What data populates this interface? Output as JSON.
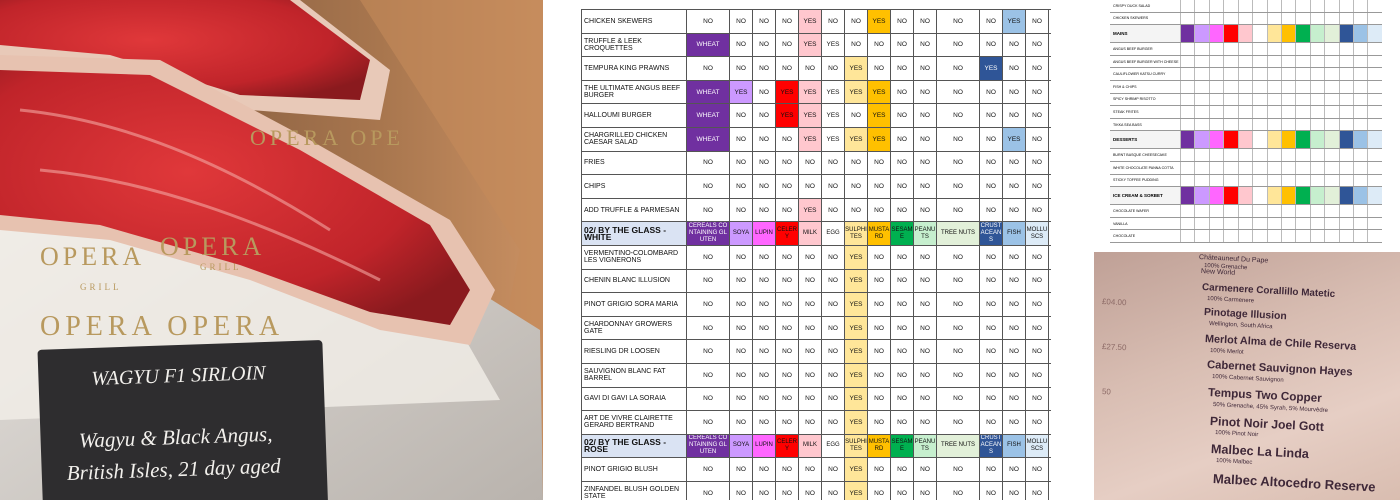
{
  "photo": {
    "sign_title": "WAGYU F1 SIRLOIN",
    "sign_lines": [
      "Wagyu & Black Angus,",
      "British Isles, 21 day aged"
    ],
    "paper_text": [
      "OPERA",
      "OPERA",
      "GRILL",
      "OPERA OPE",
      "GRILL",
      "OPERA OPERA"
    ]
  },
  "allergen_table": {
    "columns": [
      "CEREALS CONTAINING GLUTEN",
      "SOYA",
      "LUPIN",
      "CELERY",
      "MILK",
      "EGG",
      "SULPHITES",
      "MUSTARD",
      "SESAME",
      "PEANUTS",
      "TREE NUTS",
      "CRUSTACEANS",
      "FISH",
      "MOLLUSCS"
    ],
    "colors": [
      "#7030a0",
      "#cc99ff",
      "#ff66ff",
      "#ff0000",
      "#ffc7ce",
      "#ffffff",
      "#ffe699",
      "#ffc000",
      "#00b050",
      "#c6efce",
      "#e2f0d9",
      "#2f5597",
      "#9bc2e6",
      "#ddebf7"
    ],
    "rows": [
      {
        "label": "CHICKEN SKEWERS",
        "cells": [
          "NO",
          "NO",
          "NO",
          "NO",
          "YES",
          "NO",
          "NO",
          "YES",
          "NO",
          "NO",
          "NO",
          "NO",
          "YES",
          "NO"
        ]
      },
      {
        "label": "TRUFFLE & LEEK CROQUETTES",
        "cells": [
          "WHEAT",
          "NO",
          "NO",
          "NO",
          "YES",
          "YES",
          "NO",
          "NO",
          "NO",
          "NO",
          "NO",
          "NO",
          "NO",
          "NO"
        ]
      },
      {
        "label": "TEMPURA KING PRAWNS",
        "cells": [
          "NO",
          "NO",
          "NO",
          "NO",
          "NO",
          "NO",
          "YES",
          "NO",
          "NO",
          "NO",
          "NO",
          "YES",
          "NO",
          "NO"
        ]
      },
      {
        "label": "THE ULTIMATE ANGUS BEEF BURGER",
        "cells": [
          "WHEAT",
          "YES",
          "NO",
          "YES",
          "YES",
          "YES",
          "YES",
          "YES",
          "NO",
          "NO",
          "NO",
          "NO",
          "NO",
          "NO"
        ]
      },
      {
        "label": "HALLOUMI BURGER",
        "cells": [
          "WHEAT",
          "NO",
          "NO",
          "YES",
          "YES",
          "YES",
          "NO",
          "YES",
          "NO",
          "NO",
          "NO",
          "NO",
          "NO",
          "NO"
        ]
      },
      {
        "label": "CHARGRILLED CHICKEN CAESAR SALAD",
        "cells": [
          "WHEAT",
          "NO",
          "NO",
          "NO",
          "YES",
          "YES",
          "YES",
          "YES",
          "NO",
          "NO",
          "NO",
          "NO",
          "YES",
          "NO"
        ]
      },
      {
        "label": "FRIES",
        "cells": [
          "NO",
          "NO",
          "NO",
          "NO",
          "NO",
          "NO",
          "NO",
          "NO",
          "NO",
          "NO",
          "NO",
          "NO",
          "NO",
          "NO"
        ]
      },
      {
        "label": "CHIPS",
        "cells": [
          "NO",
          "NO",
          "NO",
          "NO",
          "NO",
          "NO",
          "NO",
          "NO",
          "NO",
          "NO",
          "NO",
          "NO",
          "NO",
          "NO"
        ]
      },
      {
        "label": "ADD TRUFFLE & PARMESAN",
        "cells": [
          "NO",
          "NO",
          "NO",
          "NO",
          "YES",
          "NO",
          "NO",
          "NO",
          "NO",
          "NO",
          "NO",
          "NO",
          "NO",
          "NO"
        ]
      },
      {
        "section": "02/ BY THE GLASS - WHITE"
      },
      {
        "label": "VERMENTINO-COLOMBARD LES VIGNERONS",
        "cells": [
          "NO",
          "NO",
          "NO",
          "NO",
          "NO",
          "NO",
          "YES",
          "NO",
          "NO",
          "NO",
          "NO",
          "NO",
          "NO",
          "NO"
        ]
      },
      {
        "label": "CHENIN BLANC ILLUSION",
        "cells": [
          "NO",
          "NO",
          "NO",
          "NO",
          "NO",
          "NO",
          "YES",
          "NO",
          "NO",
          "NO",
          "NO",
          "NO",
          "NO",
          "NO"
        ]
      },
      {
        "label": "PINOT GRIGIO SORA MARIA",
        "cells": [
          "NO",
          "NO",
          "NO",
          "NO",
          "NO",
          "NO",
          "YES",
          "NO",
          "NO",
          "NO",
          "NO",
          "NO",
          "NO",
          "NO"
        ]
      },
      {
        "label": "CHARDONNAY GROWERS GATE",
        "cells": [
          "NO",
          "NO",
          "NO",
          "NO",
          "NO",
          "NO",
          "YES",
          "NO",
          "NO",
          "NO",
          "NO",
          "NO",
          "NO",
          "NO"
        ]
      },
      {
        "label": "RIESLING DR LOOSEN",
        "cells": [
          "NO",
          "NO",
          "NO",
          "NO",
          "NO",
          "NO",
          "YES",
          "NO",
          "NO",
          "NO",
          "NO",
          "NO",
          "NO",
          "NO"
        ]
      },
      {
        "label": "SAUVIGNON BLANC FAT BARREL",
        "cells": [
          "NO",
          "NO",
          "NO",
          "NO",
          "NO",
          "NO",
          "YES",
          "NO",
          "NO",
          "NO",
          "NO",
          "NO",
          "NO",
          "NO"
        ]
      },
      {
        "label": "GAVI DI GAVI LA SORAIA",
        "cells": [
          "NO",
          "NO",
          "NO",
          "NO",
          "NO",
          "NO",
          "YES",
          "NO",
          "NO",
          "NO",
          "NO",
          "NO",
          "NO",
          "NO"
        ]
      },
      {
        "label": "ART DE VIVRE CLAIRETTE GERARD BERTRAND",
        "cells": [
          "NO",
          "NO",
          "NO",
          "NO",
          "NO",
          "NO",
          "YES",
          "NO",
          "NO",
          "NO",
          "NO",
          "NO",
          "NO",
          "NO"
        ]
      },
      {
        "section": "02/ BY THE GLASS - ROSE"
      },
      {
        "label": "PINOT GRIGIO BLUSH",
        "cells": [
          "NO",
          "NO",
          "NO",
          "NO",
          "NO",
          "NO",
          "YES",
          "NO",
          "NO",
          "NO",
          "NO",
          "NO",
          "NO",
          "NO"
        ]
      },
      {
        "label": "ZINFANDEL BLUSH GOLDEN STATE",
        "cells": [
          "NO",
          "NO",
          "NO",
          "NO",
          "NO",
          "NO",
          "YES",
          "NO",
          "NO",
          "NO",
          "NO",
          "NO",
          "NO",
          "NO"
        ]
      }
    ]
  },
  "small_table": {
    "rows": [
      {
        "label": "CRISPY DUCK SALAD"
      },
      {
        "label": "CHICKEN SKEWERS"
      },
      {
        "section": "MAINS"
      },
      {
        "label": "ANGUS BEEF BURGER"
      },
      {
        "label": "ANGUS BEEF BURGER WITH CHEESE"
      },
      {
        "label": "CAULIFLOWER KATSU CURRY"
      },
      {
        "label": "FISH & CHIPS"
      },
      {
        "label": "SPICY SHRIMP RISOTTO"
      },
      {
        "label": "STEAK FRITES"
      },
      {
        "label": "TIKKA SEA BASS"
      },
      {
        "section": "DESSERTS"
      },
      {
        "label": "BURNT BASQUE CHEESECAKE"
      },
      {
        "label": "WHITE CHOCOLATE PANNA COTTA"
      },
      {
        "label": "STICKY TOFFEE PUDDING"
      },
      {
        "section": "ICE CREAM & SORBET"
      },
      {
        "label": "CHOCOLATE WAFER"
      },
      {
        "label": "VANILLA"
      },
      {
        "label": "CHOCOLATE"
      }
    ]
  },
  "wine_list": {
    "items": [
      {
        "name": "Châteauneuf Du Pape",
        "detail": "100% Grenache"
      },
      {
        "name": "New World"
      },
      {
        "name": "Carmenere Corallillo Matetic",
        "detail": "100% Carmenere"
      },
      {
        "name": "Pinotage Illusion",
        "detail": "Wellington, South Africa"
      },
      {
        "name": "Merlot Alma de Chile Reserva",
        "detail": "100% Merlot"
      },
      {
        "name": "Cabernet Sauvignon Hayes",
        "detail": "100% Cabernet Sauvignon"
      },
      {
        "name": "Tempus Two Copper",
        "detail": "50% Grenache, 45% Syrah, 5% Mourvèdre"
      },
      {
        "name": "Pinot Noir Joel Gott",
        "detail": "100% Pinot Noir"
      },
      {
        "name": "Malbec La Linda",
        "detail": "100% Malbec"
      },
      {
        "name": "Malbec Altocedro Reserve"
      }
    ],
    "prices": [
      "£04.00",
      "£27.50",
      "50"
    ]
  }
}
